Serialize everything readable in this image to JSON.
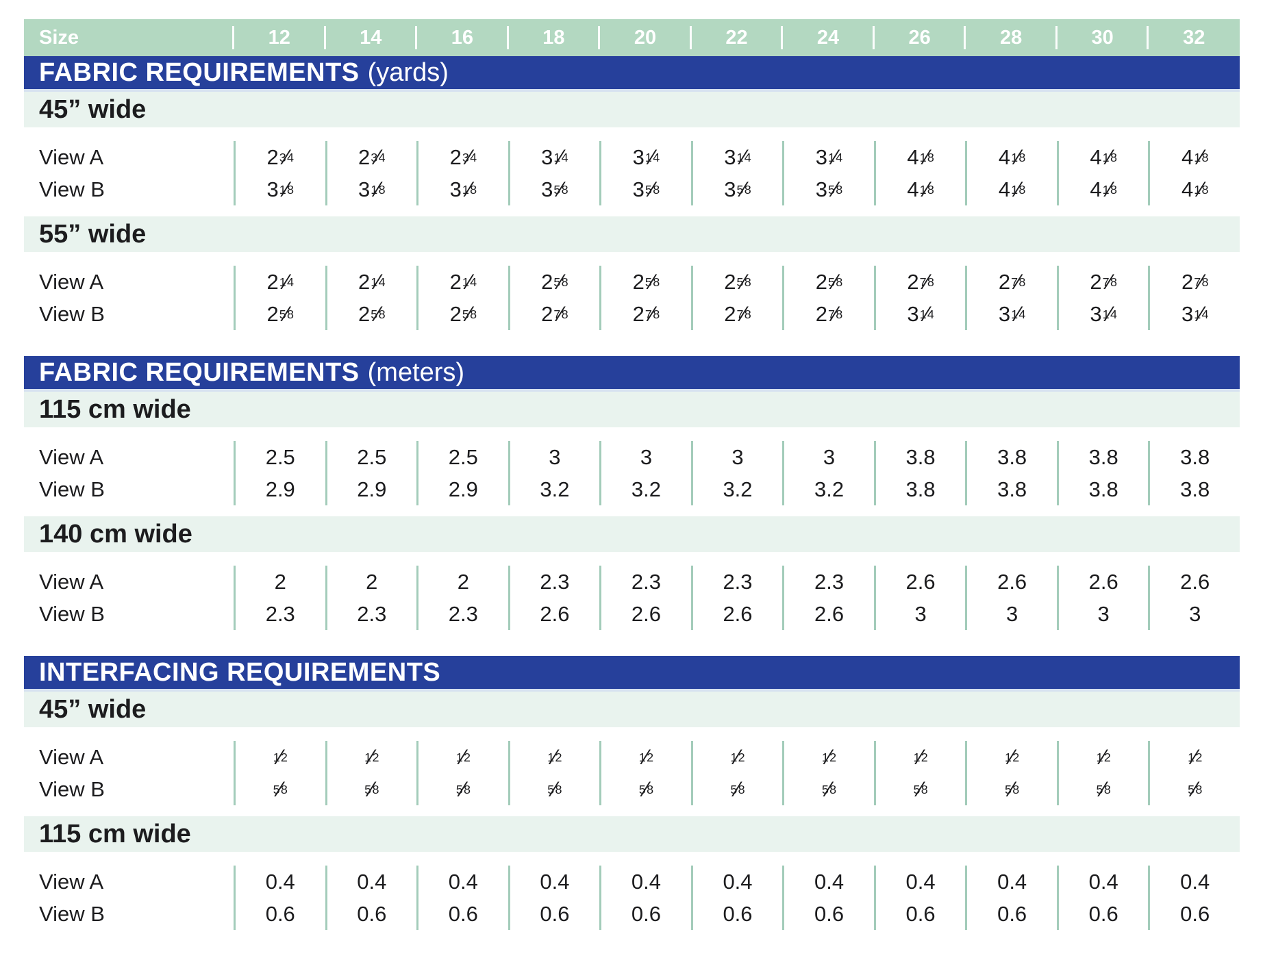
{
  "header": {
    "size_label": "Size",
    "sizes": [
      "12",
      "14",
      "16",
      "18",
      "20",
      "22",
      "24",
      "26",
      "28",
      "30",
      "32"
    ]
  },
  "sections": [
    {
      "title": "FABRIC REQUIREMENTS",
      "suffix": "(yards)",
      "subsections": [
        {
          "label": "45” wide",
          "rows": [
            {
              "label": "View A",
              "values": [
                "2 3/4",
                "2 3/4",
                "2 3/4",
                "3 1/4",
                "3 1/4",
                "3 1/4",
                "3 1/4",
                "4 1/8",
                "4 1/8",
                "4 1/8",
                "4 1/8"
              ]
            },
            {
              "label": "View B",
              "values": [
                "3 1/8",
                "3 1/8",
                "3 1/8",
                "3 5/8",
                "3 5/8",
                "3 5/8",
                "3 5/8",
                "4 1/8",
                "4 1/8",
                "4 1/8",
                "4 1/8"
              ]
            }
          ]
        },
        {
          "label": "55” wide",
          "rows": [
            {
              "label": "View A",
              "values": [
                "2 1/4",
                "2 1/4",
                "2 1/4",
                "2 5/8",
                "2 5/8",
                "2 5/8",
                "2 5/8",
                "2 7/8",
                "2 7/8",
                "2 7/8",
                "2 7/8"
              ]
            },
            {
              "label": "View B",
              "values": [
                "2 5/8",
                "2 5/8",
                "2 5/8",
                "2 7/8",
                "2 7/8",
                "2 7/8",
                "2 7/8",
                "3 1/4",
                "3 1/4",
                "3 1/4",
                "3 1/4"
              ]
            }
          ]
        }
      ]
    },
    {
      "title": "FABRIC REQUIREMENTS",
      "suffix": "(meters)",
      "subsections": [
        {
          "label": "115 cm wide",
          "rows": [
            {
              "label": "View A",
              "values": [
                "2.5",
                "2.5",
                "2.5",
                "3",
                "3",
                "3",
                "3",
                "3.8",
                "3.8",
                "3.8",
                "3.8"
              ]
            },
            {
              "label": "View B",
              "values": [
                "2.9",
                "2.9",
                "2.9",
                "3.2",
                "3.2",
                "3.2",
                "3.2",
                "3.8",
                "3.8",
                "3.8",
                "3.8"
              ]
            }
          ]
        },
        {
          "label": "140 cm wide",
          "rows": [
            {
              "label": "View A",
              "values": [
                "2",
                "2",
                "2",
                "2.3",
                "2.3",
                "2.3",
                "2.3",
                "2.6",
                "2.6",
                "2.6",
                "2.6"
              ]
            },
            {
              "label": "View B",
              "values": [
                "2.3",
                "2.3",
                "2.3",
                "2.6",
                "2.6",
                "2.6",
                "2.6",
                "3",
                "3",
                "3",
                "3"
              ]
            }
          ]
        }
      ]
    },
    {
      "title": "INTERFACING REQUIREMENTS",
      "suffix": "",
      "subsections": [
        {
          "label": "45” wide",
          "rows": [
            {
              "label": "View A",
              "values": [
                "1/2",
                "1/2",
                "1/2",
                "1/2",
                "1/2",
                "1/2",
                "1/2",
                "1/2",
                "1/2",
                "1/2",
                "1/2"
              ]
            },
            {
              "label": "View B",
              "values": [
                "5/8",
                "5/8",
                "5/8",
                "5/8",
                "5/8",
                "5/8",
                "5/8",
                "5/8",
                "5/8",
                "5/8",
                "5/8"
              ]
            }
          ]
        },
        {
          "label": "115 cm wide",
          "rows": [
            {
              "label": "View A",
              "values": [
                "0.4",
                "0.4",
                "0.4",
                "0.4",
                "0.4",
                "0.4",
                "0.4",
                "0.4",
                "0.4",
                "0.4",
                "0.4"
              ]
            },
            {
              "label": "View B",
              "values": [
                "0.6",
                "0.6",
                "0.6",
                "0.6",
                "0.6",
                "0.6",
                "0.6",
                "0.6",
                "0.6",
                "0.6",
                "0.6"
              ]
            }
          ]
        }
      ]
    }
  ],
  "colors": {
    "header_green": "#b3d8c1",
    "band_green": "#e9f3ee",
    "banner_blue": "#26409b",
    "separator_green": "#a3ccba",
    "banner_underline": "#d7e2f0",
    "text": "#1c1c1e"
  }
}
